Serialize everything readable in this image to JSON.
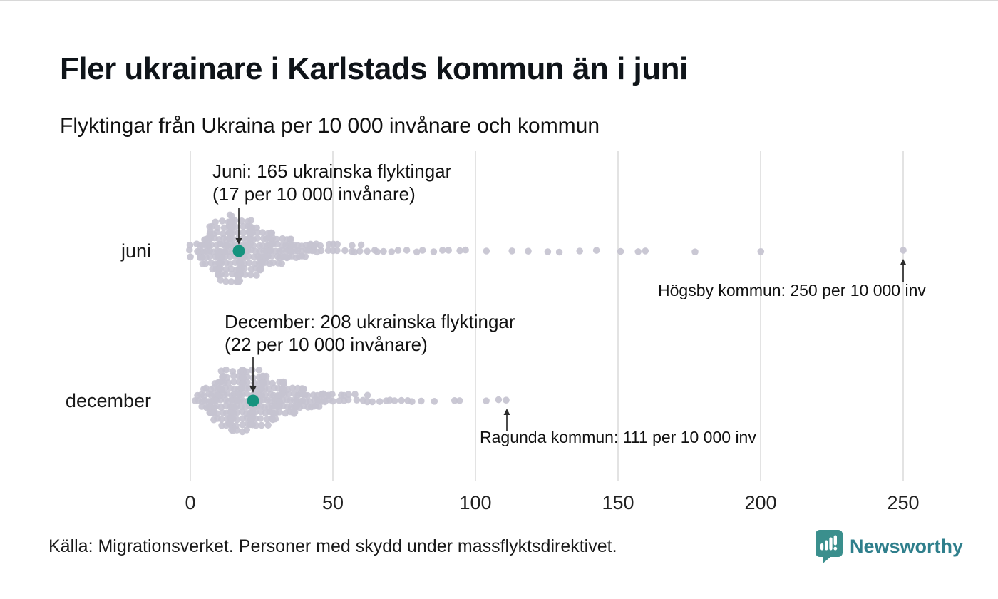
{
  "page": {
    "title": "Fler ukrainare i Karlstads kommun än i juni",
    "subtitle": "Flyktingar från Ukraina per 10 000 invånare och kommun",
    "source": "Källa: Migrationsverket. Personer med skydd under massflyktsdirektivet.",
    "brand": "Newsworthy"
  },
  "colors": {
    "dot": "#c5c3d0",
    "highlight": "#15937e",
    "gridline": "#dadada",
    "arrow": "#2b2b2b",
    "brand_teal": "#3a8f8d",
    "brand_text": "#2f7f8c"
  },
  "chart_data": {
    "type": "beeswarm",
    "title": "Fler ukrainare i Karlstads kommun än i juni",
    "subtitle": "Flyktingar från Ukraina per 10 000 invånare och kommun",
    "unit": "flyktingar per 10 000 invånare och kommun",
    "x_ticks": [
      0,
      50,
      100,
      150,
      200,
      250
    ],
    "xlim": [
      0,
      255
    ],
    "grid": true,
    "rows": [
      {
        "label": "juni",
        "highlight_municipality": "Karlstads kommun",
        "highlight_refugees": 165,
        "highlight_value": 17,
        "max_municipality": "Högsby kommun",
        "max_value": 250,
        "points": [
          [
            0,
            3
          ],
          [
            2,
            2
          ],
          [
            3,
            3
          ],
          [
            4,
            4
          ],
          [
            5,
            5
          ],
          [
            6,
            6
          ],
          [
            7,
            7
          ],
          [
            8,
            8
          ],
          [
            9,
            9
          ],
          [
            10,
            10
          ],
          [
            11,
            10
          ],
          [
            12,
            11
          ],
          [
            13,
            11
          ],
          [
            14,
            12
          ],
          [
            15,
            12
          ],
          [
            16,
            11
          ],
          [
            17,
            11
          ],
          [
            18,
            11
          ],
          [
            19,
            10
          ],
          [
            20,
            10
          ],
          [
            21,
            9
          ],
          [
            22,
            9
          ],
          [
            23,
            8
          ],
          [
            24,
            8
          ],
          [
            25,
            7
          ],
          [
            26,
            7
          ],
          [
            27,
            6
          ],
          [
            28,
            6
          ],
          [
            29,
            5
          ],
          [
            30,
            5
          ],
          [
            31,
            5
          ],
          [
            32,
            4
          ],
          [
            33,
            4
          ],
          [
            34,
            4
          ],
          [
            35,
            4
          ],
          [
            36,
            3
          ],
          [
            37,
            3
          ],
          [
            38,
            3
          ],
          [
            39,
            3
          ],
          [
            40,
            3
          ],
          [
            41,
            2
          ],
          [
            42,
            2
          ],
          [
            43,
            2
          ],
          [
            44,
            2
          ],
          [
            45,
            2
          ],
          [
            46,
            2
          ],
          [
            48,
            2
          ],
          [
            50,
            2
          ],
          [
            52,
            2
          ],
          [
            54,
            1
          ],
          [
            56,
            2
          ],
          [
            58,
            1
          ],
          [
            60,
            2
          ],
          [
            62,
            1
          ],
          [
            64,
            1
          ],
          [
            66,
            1
          ],
          [
            68,
            1
          ],
          [
            70,
            1
          ],
          [
            73,
            1
          ],
          [
            76,
            1
          ],
          [
            79,
            1
          ],
          [
            82,
            1
          ],
          [
            85,
            1
          ],
          [
            88,
            1
          ],
          [
            91,
            1
          ],
          [
            94,
            1
          ],
          [
            97,
            1
          ],
          [
            104,
            1
          ],
          [
            113,
            1
          ],
          [
            118,
            1
          ],
          [
            125,
            1
          ],
          [
            130,
            1
          ],
          [
            137,
            1
          ],
          [
            142,
            1
          ],
          [
            151,
            1
          ],
          [
            157,
            1
          ],
          [
            160,
            1
          ],
          [
            177,
            1
          ],
          [
            200,
            1
          ],
          [
            250,
            1
          ]
        ]
      },
      {
        "label": "december",
        "highlight_municipality": "Karlstads kommun",
        "highlight_refugees": 208,
        "highlight_value": 22,
        "max_municipality": "Ragunda kommun",
        "max_value": 111,
        "points": [
          [
            2,
            1
          ],
          [
            3,
            2
          ],
          [
            4,
            3
          ],
          [
            5,
            4
          ],
          [
            6,
            5
          ],
          [
            7,
            5
          ],
          [
            8,
            6
          ],
          [
            9,
            7
          ],
          [
            10,
            8
          ],
          [
            11,
            9
          ],
          [
            12,
            9
          ],
          [
            13,
            10
          ],
          [
            14,
            10
          ],
          [
            15,
            11
          ],
          [
            16,
            11
          ],
          [
            17,
            11
          ],
          [
            18,
            11
          ],
          [
            19,
            11
          ],
          [
            20,
            10
          ],
          [
            21,
            10
          ],
          [
            22,
            10
          ],
          [
            23,
            10
          ],
          [
            24,
            9
          ],
          [
            25,
            9
          ],
          [
            26,
            9
          ],
          [
            27,
            8
          ],
          [
            28,
            8
          ],
          [
            29,
            7
          ],
          [
            30,
            7
          ],
          [
            31,
            7
          ],
          [
            32,
            6
          ],
          [
            33,
            6
          ],
          [
            34,
            6
          ],
          [
            35,
            5
          ],
          [
            36,
            5
          ],
          [
            37,
            5
          ],
          [
            38,
            4
          ],
          [
            39,
            4
          ],
          [
            40,
            4
          ],
          [
            41,
            3
          ],
          [
            42,
            3
          ],
          [
            43,
            3
          ],
          [
            44,
            3
          ],
          [
            45,
            3
          ],
          [
            46,
            2
          ],
          [
            47,
            2
          ],
          [
            48,
            2
          ],
          [
            49,
            2
          ],
          [
            50,
            2
          ],
          [
            52,
            2
          ],
          [
            54,
            2
          ],
          [
            56,
            2
          ],
          [
            58,
            2
          ],
          [
            60,
            1
          ],
          [
            62,
            2
          ],
          [
            64,
            1
          ],
          [
            66,
            1
          ],
          [
            68,
            1
          ],
          [
            70,
            1
          ],
          [
            72,
            1
          ],
          [
            74,
            1
          ],
          [
            76,
            1
          ],
          [
            78,
            1
          ],
          [
            81,
            1
          ],
          [
            86,
            1
          ],
          [
            93,
            1
          ],
          [
            95,
            1
          ],
          [
            104,
            1
          ],
          [
            108,
            1
          ],
          [
            111,
            1
          ]
        ]
      }
    ],
    "annotations": {
      "juni": {
        "line1": "Juni: 165 ukrainska flyktingar",
        "line2": "(17 per 10 000 invånare)",
        "row": 0,
        "value": 17
      },
      "december": {
        "line1": "December: 208 ukrainska flyktingar",
        "line2": "(22 per 10 000 invånare)",
        "row": 1,
        "value": 22
      },
      "hogsby": {
        "text": "Högsby kommun: 250 per 10 000 inv",
        "row": 0,
        "value": 250
      },
      "ragunda": {
        "text": "Ragunda kommun: 111 per 10 000 inv",
        "row": 1,
        "value": 111
      }
    }
  }
}
